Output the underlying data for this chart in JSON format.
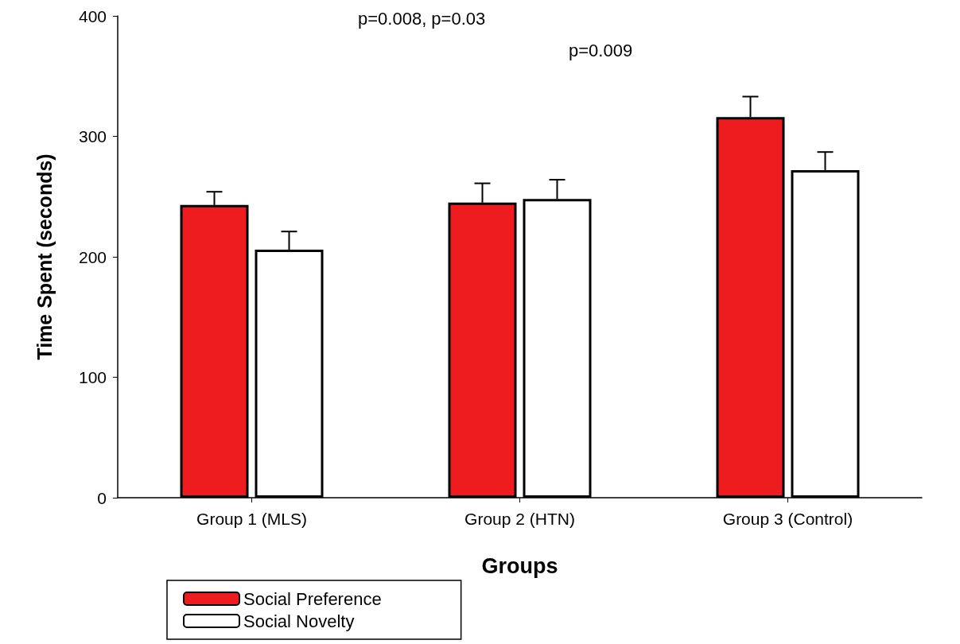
{
  "chart_data": {
    "type": "bar",
    "xlabel": "Groups",
    "ylabel": "Time Spent (seconds)",
    "categories": [
      "Group 1 (MLS)",
      "Group 2 (HTN)",
      "Group 3 (Control)"
    ],
    "series": [
      {
        "name": "Social Preference",
        "color": "#ee1c1f",
        "values": [
          243,
          245,
          316
        ],
        "errors": [
          11,
          16,
          17
        ]
      },
      {
        "name": "Social Novelty",
        "color": "#ffffff",
        "values": [
          206,
          248,
          272
        ],
        "errors": [
          15,
          16,
          15
        ]
      }
    ],
    "ylim": [
      0,
      400
    ],
    "yticks": [
      0,
      100,
      200,
      300,
      400
    ],
    "grid": false,
    "legend": "bottom left",
    "annotations": [
      "p=0.008, p=0.03",
      "p=0.009"
    ]
  }
}
